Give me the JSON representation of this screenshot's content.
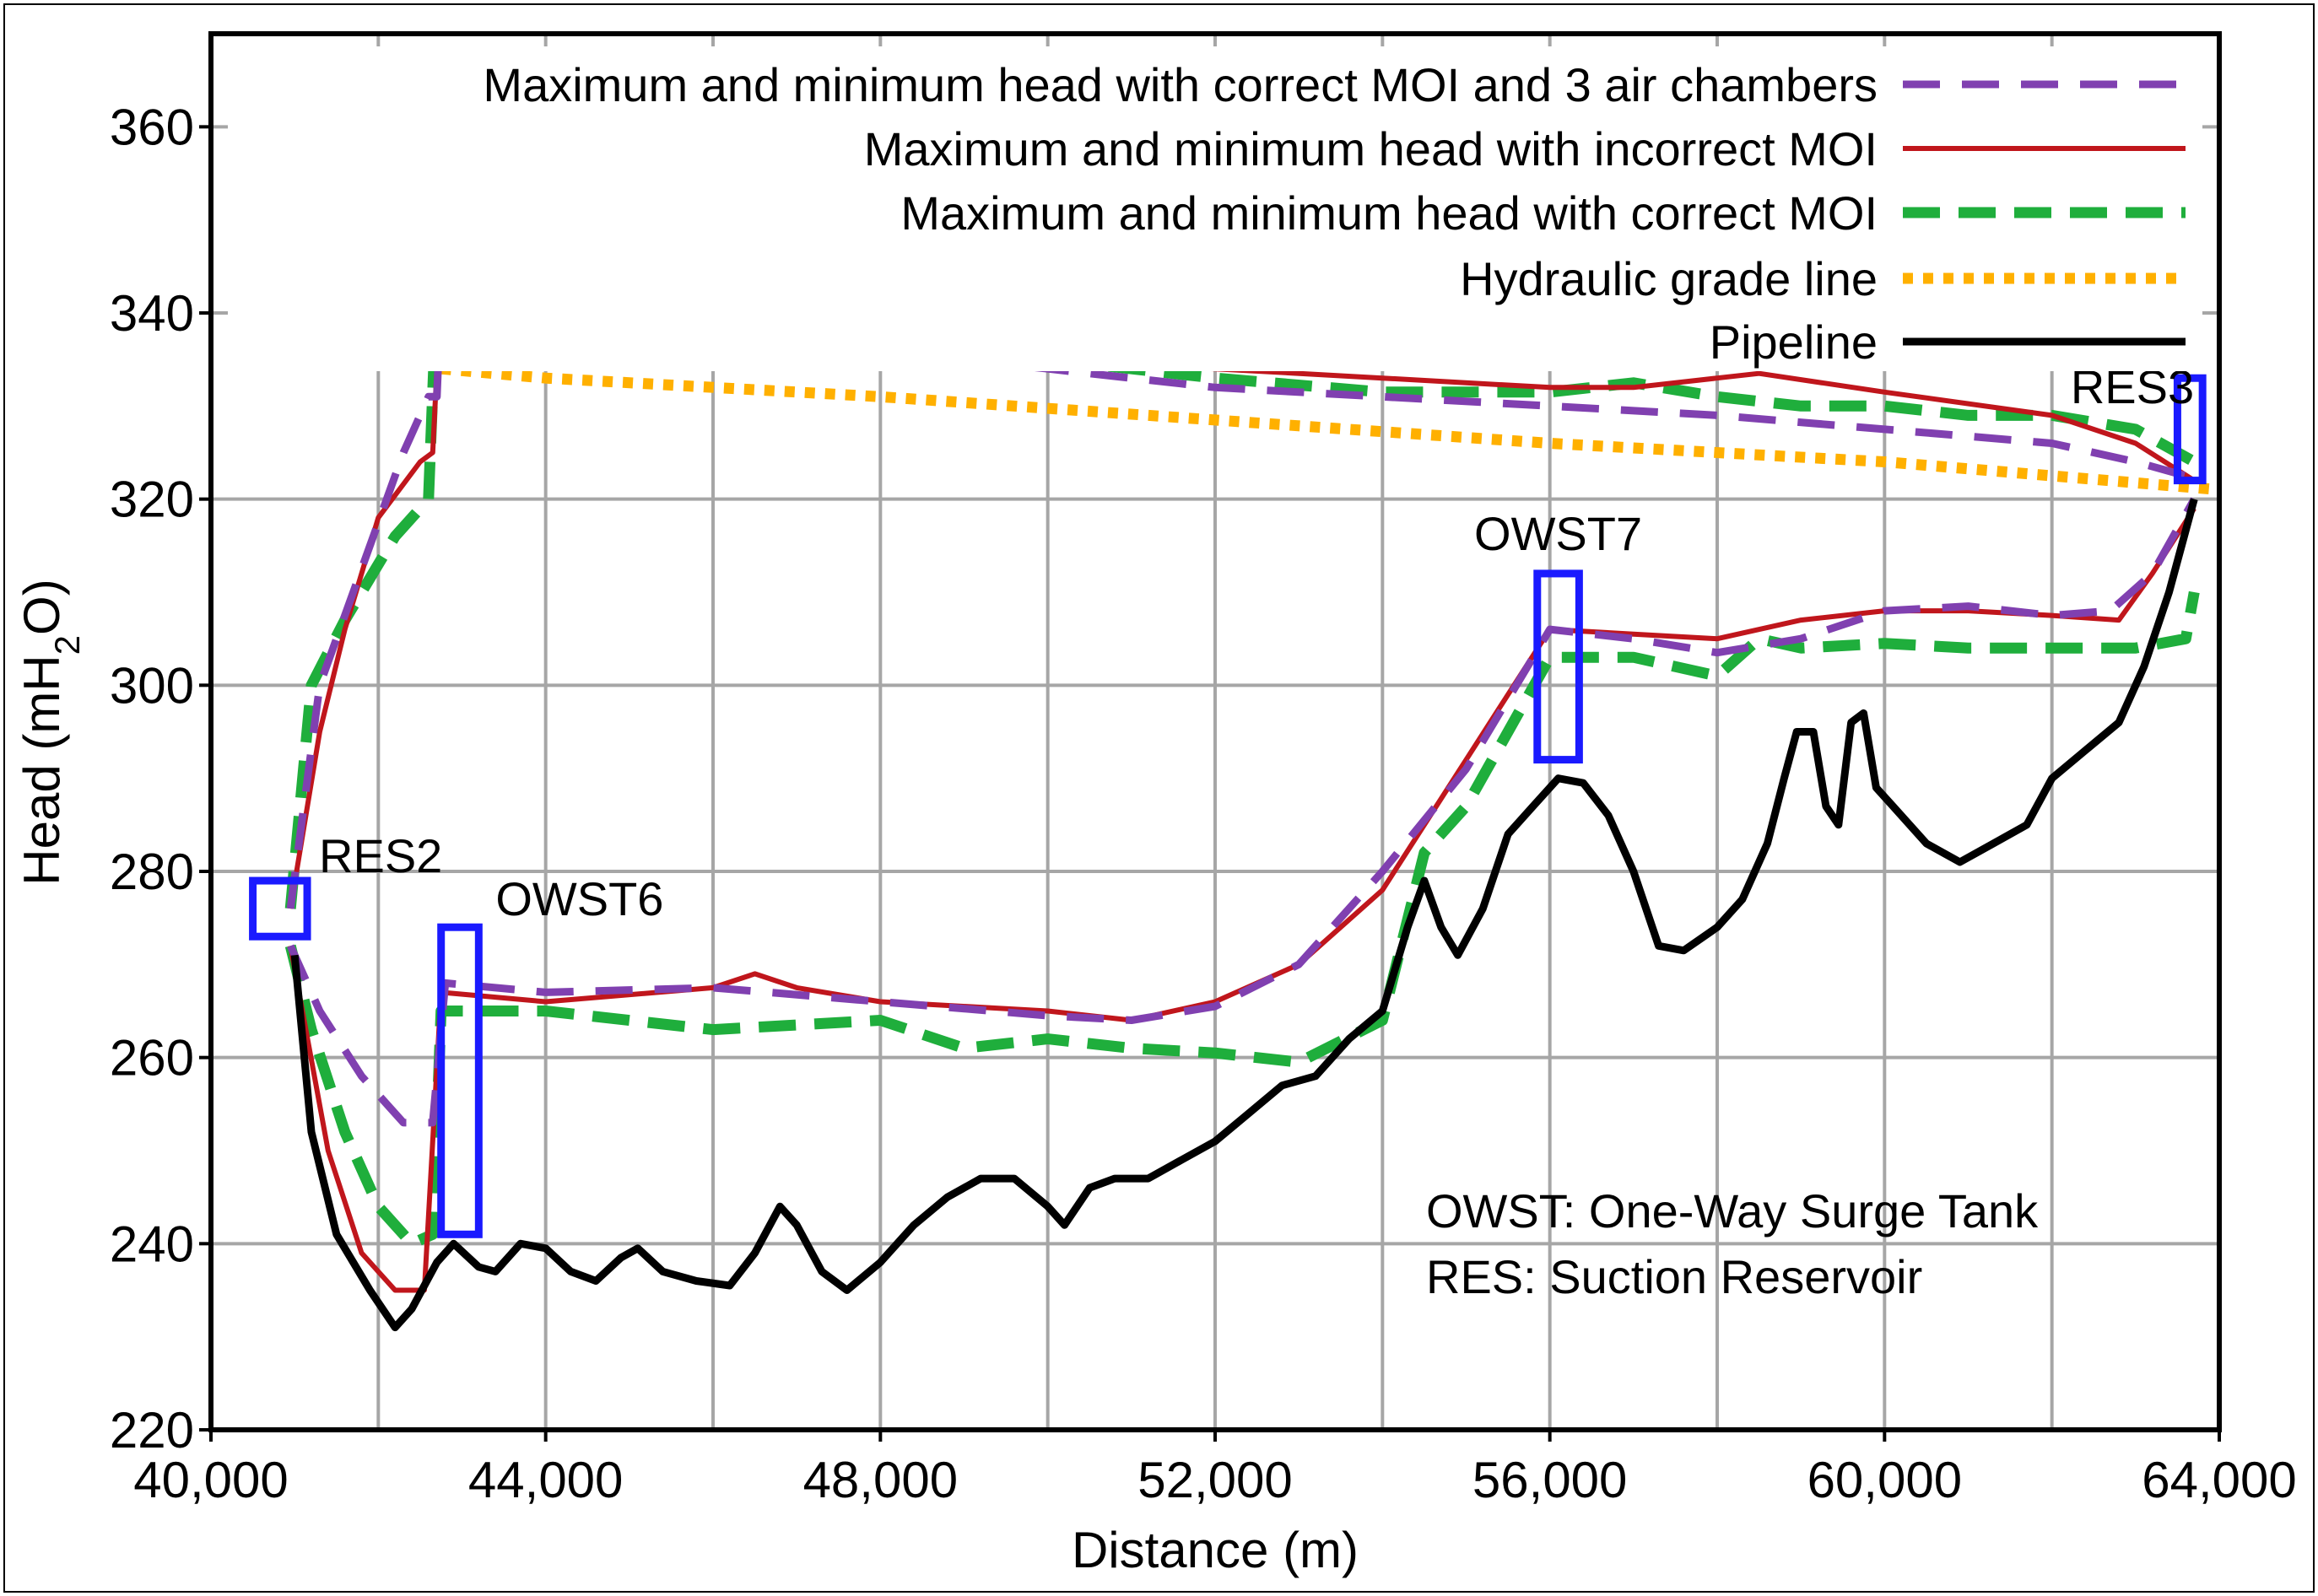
{
  "chart_data": {
    "type": "line",
    "xlabel": "Distance (m)",
    "ylabel_parts": [
      "Head (mH",
      "2",
      "O)"
    ],
    "xlim": [
      40000,
      64000
    ],
    "ylim": [
      220,
      370
    ],
    "x_ticks": [
      40000,
      44000,
      48000,
      52000,
      56000,
      60000,
      64000
    ],
    "x_tick_labels": [
      "40,000",
      "44,000",
      "48,000",
      "52,000",
      "56,000",
      "60,000",
      "64,000"
    ],
    "x_minor_step": 2000,
    "y_ticks": [
      220,
      240,
      260,
      280,
      300,
      320,
      340,
      360
    ],
    "y_tick_labels": [
      "220",
      "240",
      "260",
      "280",
      "300",
      "320",
      "340",
      "360"
    ],
    "grid": true,
    "legend_position": "top-right",
    "series": [
      {
        "name": "Maximum and minimum head with correct MOI and 3 air chambers",
        "color": "#8040b0",
        "style": "dashed",
        "lines": [
          [
            [
              40950,
              276
            ],
            [
              41300,
              300
            ],
            [
              41700,
              310
            ],
            [
              42300,
              325
            ],
            [
              42600,
              331
            ],
            [
              42700,
              331
            ],
            [
              42750,
              342
            ],
            [
              44000,
              341
            ],
            [
              46000,
              338
            ],
            [
              48000,
              336
            ],
            [
              50000,
              334
            ],
            [
              52000,
              332
            ],
            [
              54000,
              331
            ],
            [
              56000,
              330
            ],
            [
              58000,
              329
            ],
            [
              60000,
              327.5
            ],
            [
              62000,
              326
            ],
            [
              63000,
              324
            ],
            [
              63800,
              322
            ]
          ],
          [
            [
              40950,
              272
            ],
            [
              41300,
              265
            ],
            [
              41800,
              258
            ],
            [
              42300,
              253
            ],
            [
              42650,
              253
            ],
            [
              42800,
              268
            ],
            [
              44000,
              267
            ],
            [
              46000,
              267.5
            ],
            [
              48000,
              266
            ],
            [
              50000,
              264.5
            ],
            [
              51000,
              264
            ],
            [
              52000,
              265.5
            ],
            [
              53000,
              270
            ],
            [
              54000,
              280
            ],
            [
              55000,
              291
            ],
            [
              56000,
              306
            ],
            [
              57000,
              305
            ],
            [
              58000,
              303.5
            ],
            [
              59000,
              305
            ],
            [
              60000,
              308
            ],
            [
              61000,
              308.5
            ],
            [
              62000,
              307.5
            ],
            [
              62700,
              308
            ],
            [
              63200,
              312
            ],
            [
              63700,
              320
            ]
          ]
        ]
      },
      {
        "name": "Maximum and minimum head with incorrect MOI",
        "color": "#c0161c",
        "style": "solid",
        "lines": [
          [
            [
              40950,
              276
            ],
            [
              41300,
              295
            ],
            [
              41600,
              306
            ],
            [
              42000,
              318
            ],
            [
              42500,
              324
            ],
            [
              42650,
              325
            ],
            [
              42750,
              343
            ],
            [
              44000,
              342
            ],
            [
              46000,
              340
            ],
            [
              48000,
              337
            ],
            [
              50000,
              335
            ],
            [
              52000,
              334
            ],
            [
              54000,
              333
            ],
            [
              56000,
              332
            ],
            [
              57000,
              332
            ],
            [
              58000,
              333
            ],
            [
              58500,
              333.5
            ],
            [
              60000,
              331.5
            ],
            [
              62000,
              329
            ],
            [
              63000,
              326
            ],
            [
              63700,
              322
            ]
          ],
          [
            [
              40950,
              272
            ],
            [
              41400,
              250
            ],
            [
              41800,
              239
            ],
            [
              42200,
              235
            ],
            [
              42550,
              235
            ],
            [
              42750,
              267
            ],
            [
              44000,
              266
            ],
            [
              46000,
              267.5
            ],
            [
              46500,
              269
            ],
            [
              47000,
              267.5
            ],
            [
              48000,
              266
            ],
            [
              50000,
              265
            ],
            [
              51000,
              264
            ],
            [
              52000,
              266
            ],
            [
              53000,
              270
            ],
            [
              54000,
              278
            ],
            [
              55000,
              292
            ],
            [
              56000,
              306
            ],
            [
              57000,
              305.5
            ],
            [
              58000,
              305
            ],
            [
              59000,
              307
            ],
            [
              60000,
              308
            ],
            [
              61000,
              308
            ],
            [
              62000,
              307.5
            ],
            [
              62800,
              307
            ],
            [
              63200,
              312
            ],
            [
              63700,
              319
            ]
          ]
        ]
      },
      {
        "name": "Maximum and minimum head with correct MOI",
        "color": "#1fae3c",
        "style": "dashed",
        "lines": [
          [
            [
              40950,
              276
            ],
            [
              41200,
              300
            ],
            [
              41600,
              307
            ],
            [
              42200,
              316
            ],
            [
              42600,
              320
            ],
            [
              42700,
              343
            ],
            [
              44000,
              342
            ],
            [
              46000,
              339
            ],
            [
              48000,
              337
            ],
            [
              50000,
              335
            ],
            [
              52000,
              333
            ],
            [
              54000,
              331.5
            ],
            [
              56000,
              331.5
            ],
            [
              57000,
              332.5
            ],
            [
              58000,
              331
            ],
            [
              59000,
              330
            ],
            [
              60000,
              330
            ],
            [
              61000,
              329
            ],
            [
              62000,
              329
            ],
            [
              63000,
              327.5
            ],
            [
              63700,
              324
            ]
          ],
          [
            [
              40950,
              272
            ],
            [
              41200,
              263
            ],
            [
              41600,
              252
            ],
            [
              42000,
              244
            ],
            [
              42400,
              240
            ],
            [
              42650,
              241
            ],
            [
              42750,
              265
            ],
            [
              44000,
              265
            ],
            [
              46000,
              263
            ],
            [
              48000,
              264
            ],
            [
              49000,
              261
            ],
            [
              50000,
              262
            ],
            [
              51000,
              261
            ],
            [
              52000,
              260.5
            ],
            [
              53000,
              259.5
            ],
            [
              54000,
              264
            ],
            [
              54500,
              282
            ],
            [
              55000,
              287
            ],
            [
              56000,
              303
            ],
            [
              57000,
              303
            ],
            [
              58000,
              301
            ],
            [
              58500,
              305
            ],
            [
              59000,
              304
            ],
            [
              60000,
              304.5
            ],
            [
              61000,
              304
            ],
            [
              62000,
              304
            ],
            [
              63000,
              304
            ],
            [
              63600,
              305
            ],
            [
              63700,
              310
            ]
          ]
        ]
      },
      {
        "name": "Hydraulic grade line",
        "color": "#ffb000",
        "style": "dotted",
        "lines": [
          [
            [
              42750,
              334
            ],
            [
              44000,
              333
            ],
            [
              48000,
              331
            ],
            [
              52000,
              328.5
            ],
            [
              56000,
              326
            ],
            [
              60000,
              324
            ],
            [
              64000,
              321
            ]
          ]
        ]
      },
      {
        "name": "Pipeline",
        "color": "#000000",
        "style": "solid",
        "lines": [
          [
            [
              41000,
              271
            ],
            [
              41200,
              252
            ],
            [
              41500,
              241
            ],
            [
              41900,
              235
            ],
            [
              42200,
              231
            ],
            [
              42400,
              233
            ],
            [
              42700,
              238
            ],
            [
              42900,
              240
            ],
            [
              43200,
              237.5
            ],
            [
              43400,
              237
            ],
            [
              43700,
              240
            ],
            [
              44000,
              239.5
            ],
            [
              44300,
              237
            ],
            [
              44600,
              236
            ],
            [
              44900,
              238.5
            ],
            [
              45100,
              239.5
            ],
            [
              45400,
              237
            ],
            [
              45800,
              236
            ],
            [
              46200,
              235.5
            ],
            [
              46500,
              239
            ],
            [
              46800,
              244
            ],
            [
              47000,
              242
            ],
            [
              47300,
              237
            ],
            [
              47600,
              235
            ],
            [
              48000,
              238
            ],
            [
              48400,
              242
            ],
            [
              48800,
              245
            ],
            [
              49200,
              247
            ],
            [
              49600,
              247
            ],
            [
              50000,
              244
            ],
            [
              50200,
              242
            ],
            [
              50500,
              246
            ],
            [
              50800,
              247
            ],
            [
              51200,
              247
            ],
            [
              51600,
              249
            ],
            [
              52000,
              251
            ],
            [
              52400,
              254
            ],
            [
              52800,
              257
            ],
            [
              53200,
              258
            ],
            [
              53600,
              262
            ],
            [
              54000,
              265
            ],
            [
              54300,
              274
            ],
            [
              54500,
              279
            ],
            [
              54700,
              274
            ],
            [
              54900,
              271
            ],
            [
              55200,
              276
            ],
            [
              55500,
              284
            ],
            [
              55800,
              287
            ],
            [
              56100,
              290
            ],
            [
              56400,
              289.5
            ],
            [
              56700,
              286
            ],
            [
              57000,
              280
            ],
            [
              57300,
              272
            ],
            [
              57600,
              271.5
            ],
            [
              58000,
              274
            ],
            [
              58300,
              277
            ],
            [
              58600,
              283
            ],
            [
              58800,
              290
            ],
            [
              58950,
              295
            ],
            [
              59150,
              295
            ],
            [
              59300,
              287
            ],
            [
              59450,
              285
            ],
            [
              59600,
              296
            ],
            [
              59750,
              297
            ],
            [
              59900,
              289
            ],
            [
              60100,
              287
            ],
            [
              60500,
              283
            ],
            [
              60900,
              281
            ],
            [
              61300,
              283
            ],
            [
              61700,
              285
            ],
            [
              62000,
              290
            ],
            [
              62400,
              293
            ],
            [
              62800,
              296
            ],
            [
              63100,
              302
            ],
            [
              63400,
              310
            ],
            [
              63700,
              320
            ]
          ]
        ]
      }
    ],
    "markers": [
      {
        "label": "RES2",
        "x_range": [
          40500,
          41150
        ],
        "y_range": [
          273,
          279
        ]
      },
      {
        "label": "OWST6",
        "x_range": [
          42750,
          43200
        ],
        "y_range": [
          241,
          274
        ]
      },
      {
        "label": "OWST7",
        "x_range": [
          55850,
          56350
        ],
        "y_range": [
          292,
          312
        ]
      },
      {
        "label": "RES3",
        "x_range": [
          63500,
          63800
        ],
        "y_range": [
          322,
          333
        ]
      }
    ],
    "annotations": [
      "OWST: One-Way Surge Tank",
      "RES: Suction Reservoir"
    ]
  }
}
